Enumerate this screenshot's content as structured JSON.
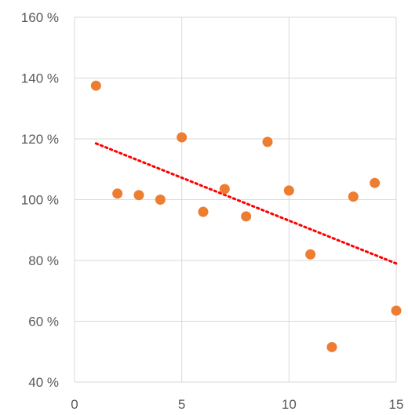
{
  "chart_data": {
    "type": "scatter",
    "title": "",
    "xlabel": "",
    "ylabel": "",
    "xlim": [
      0,
      15
    ],
    "ylim": [
      40,
      160
    ],
    "x_ticks": [
      0,
      5,
      10,
      15
    ],
    "x_tick_labels": [
      "0",
      "5",
      "10",
      "15"
    ],
    "y_ticks": [
      40,
      60,
      80,
      100,
      120,
      140,
      160
    ],
    "y_tick_labels": [
      "40 %",
      "60 %",
      "80 %",
      "100 %",
      "120 %",
      "140 %",
      "160 %"
    ],
    "grid": true,
    "legend": "none",
    "colors": {
      "points": "#ED7D31",
      "trendline": "#FF0000",
      "grid": "#D9D9D9",
      "text": "#595959"
    },
    "series": [
      {
        "x": [
          1,
          2,
          3,
          4,
          5,
          6,
          7,
          8,
          9,
          10,
          11,
          12,
          13,
          14,
          15
        ],
        "y": [
          137.5,
          102,
          101.5,
          100,
          120.5,
          96,
          103.5,
          94.5,
          119,
          103,
          82,
          51.5,
          101,
          105.5,
          63.5
        ]
      }
    ],
    "trendline": {
      "type": "linear",
      "style": "dotted",
      "x": [
        1,
        15
      ],
      "y": [
        118.5,
        79
      ]
    }
  }
}
